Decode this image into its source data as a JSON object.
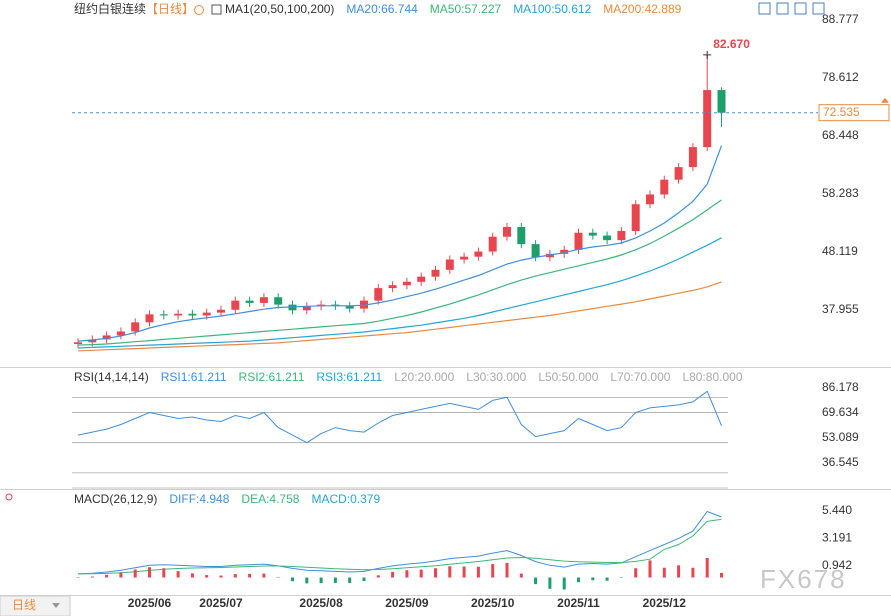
{
  "header": {
    "symbol": "纽约白银连续",
    "period": "【日线】"
  },
  "footer": {
    "period_button": "日线",
    "watermark": "FX678"
  },
  "chart_data": [
    {
      "type": "candlestick",
      "legend_title": "MA1(20,50,100,200)",
      "up_color": "#e8464f",
      "down_color": "#1e9e6a",
      "open": [
        32.0,
        32.3,
        32.8,
        33.5,
        34.2,
        35.8,
        37.2,
        37.0,
        37.3,
        37.0,
        37.5,
        38.0,
        39.6,
        39.2,
        40.2,
        38.9,
        37.9,
        38.6,
        38.9,
        38.7,
        38.2,
        39.6,
        41.8,
        42.3,
        42.9,
        43.8,
        45.0,
        46.8,
        47.3,
        48.2,
        50.8,
        52.5,
        49.5,
        47.2,
        47.8,
        48.5,
        51.5,
        51.0,
        50.2,
        51.8,
        56.5,
        58.2,
        60.8,
        63.0,
        66.5,
        76.5
      ],
      "high": [
        33.0,
        33.5,
        34.2,
        34.9,
        36.5,
        37.9,
        37.9,
        38.0,
        38.0,
        38.2,
        38.7,
        40.3,
        40.3,
        40.9,
        40.9,
        39.6,
        39.3,
        39.6,
        39.6,
        39.4,
        40.3,
        42.5,
        43.0,
        43.6,
        44.5,
        45.7,
        47.5,
        48.0,
        48.9,
        51.5,
        53.2,
        53.2,
        50.2,
        48.5,
        49.2,
        52.2,
        52.2,
        51.7,
        52.5,
        57.2,
        58.9,
        61.5,
        63.7,
        67.2,
        82.67,
        77.0
      ],
      "low": [
        31.3,
        31.6,
        32.1,
        32.8,
        33.5,
        35.1,
        36.3,
        36.3,
        36.3,
        36.3,
        36.8,
        37.3,
        38.5,
        38.5,
        38.2,
        37.2,
        37.2,
        37.9,
        38.0,
        37.5,
        37.5,
        38.9,
        41.1,
        41.6,
        42.2,
        43.1,
        44.3,
        46.1,
        46.6,
        47.5,
        50.1,
        48.8,
        46.5,
        46.5,
        47.1,
        47.8,
        50.3,
        49.5,
        49.5,
        51.1,
        55.8,
        57.5,
        60.1,
        62.3,
        65.8,
        70.0
      ],
      "close": [
        32.3,
        32.8,
        33.5,
        34.2,
        35.8,
        37.2,
        37.0,
        37.3,
        37.0,
        37.5,
        38.0,
        39.6,
        39.2,
        40.2,
        38.9,
        37.9,
        38.6,
        38.9,
        38.7,
        38.2,
        39.6,
        41.8,
        42.3,
        42.9,
        43.8,
        45.0,
        46.8,
        47.3,
        48.2,
        50.8,
        52.5,
        49.5,
        47.2,
        47.8,
        48.5,
        51.5,
        51.0,
        50.2,
        51.8,
        56.5,
        58.2,
        60.8,
        63.0,
        66.5,
        76.5,
        72.535
      ],
      "overlays": [
        {
          "name": "MA20:66.744",
          "color": "#3f8fe0",
          "values": [
            32.5,
            32.7,
            33.0,
            33.4,
            34.0,
            34.8,
            35.4,
            35.9,
            36.3,
            36.6,
            36.9,
            37.3,
            37.7,
            38.1,
            38.4,
            38.5,
            38.6,
            38.7,
            38.7,
            38.7,
            38.8,
            39.2,
            39.7,
            40.3,
            40.9,
            41.6,
            42.4,
            43.2,
            44.0,
            45.0,
            46.0,
            46.7,
            47.2,
            47.6,
            48.0,
            48.6,
            49.0,
            49.3,
            49.7,
            50.6,
            51.8,
            53.2,
            55.0,
            57.0,
            60.0,
            66.744
          ]
        },
        {
          "name": "MA50:57.227",
          "color": "#3cb878",
          "values": [
            31.8,
            31.9,
            32.0,
            32.2,
            32.4,
            32.6,
            32.8,
            33.0,
            33.2,
            33.4,
            33.6,
            33.8,
            34.0,
            34.2,
            34.4,
            34.6,
            34.8,
            35.0,
            35.2,
            35.4,
            35.6,
            36.0,
            36.5,
            37.0,
            37.6,
            38.3,
            39.0,
            39.8,
            40.6,
            41.5,
            42.4,
            43.2,
            43.9,
            44.5,
            45.1,
            45.7,
            46.3,
            46.9,
            47.6,
            48.5,
            49.6,
            50.9,
            52.3,
            53.8,
            55.5,
            57.227
          ]
        },
        {
          "name": "MA100:50.612",
          "color": "#26a5d6",
          "values": [
            31.3,
            31.4,
            31.5,
            31.6,
            31.7,
            31.8,
            31.9,
            32.0,
            32.1,
            32.2,
            32.3,
            32.4,
            32.5,
            32.7,
            32.9,
            33.1,
            33.3,
            33.5,
            33.7,
            33.9,
            34.1,
            34.4,
            34.7,
            35.0,
            35.3,
            35.7,
            36.1,
            36.5,
            37.0,
            37.6,
            38.2,
            38.8,
            39.4,
            40.0,
            40.6,
            41.2,
            41.8,
            42.4,
            43.1,
            43.9,
            44.8,
            45.8,
            46.9,
            48.1,
            49.3,
            50.612
          ]
        },
        {
          "name": "MA200:42.889",
          "color": "#e98b3f",
          "values": [
            30.8,
            30.9,
            31.0,
            31.1,
            31.2,
            31.3,
            31.4,
            31.5,
            31.6,
            31.7,
            31.8,
            31.9,
            32.0,
            32.1,
            32.2,
            32.4,
            32.6,
            32.8,
            33.0,
            33.2,
            33.4,
            33.6,
            33.8,
            34.0,
            34.3,
            34.6,
            34.9,
            35.2,
            35.5,
            35.8,
            36.1,
            36.4,
            36.7,
            37.0,
            37.4,
            37.8,
            38.2,
            38.6,
            39.0,
            39.4,
            39.9,
            40.4,
            40.9,
            41.4,
            42.0,
            42.889
          ]
        }
      ],
      "last_price": 72.535,
      "high_label": {
        "value": 82.67,
        "label": "82.670"
      },
      "ylim": [
        28.32,
        90.53
      ],
      "yticks": [
        37.955,
        48.119,
        58.283,
        68.448,
        78.612,
        88.777
      ]
    },
    {
      "type": "line",
      "legend_title": "RSI(14,14,14)",
      "series": [
        {
          "name": "RSI1:61.211",
          "color": "#3f8fe0",
          "values": [
            55,
            57,
            59,
            62,
            66,
            70,
            68,
            66,
            67,
            65,
            64,
            68,
            66,
            70,
            60,
            55,
            50,
            56,
            60,
            58,
            57,
            63,
            68,
            70,
            72,
            74,
            76,
            74,
            72,
            78,
            80,
            62,
            54,
            56,
            58,
            66,
            62,
            58,
            60,
            70,
            73,
            74,
            75,
            77,
            84,
            61.211
          ]
        }
      ],
      "legend_extra": [
        {
          "text": "RSI2:61.211",
          "color": "#3cb878"
        },
        {
          "text": "RSI3:61.211",
          "color": "#26a5d6"
        },
        {
          "text": "L20:20.000",
          "color": "#aaaaaa"
        },
        {
          "text": "L30:30.000",
          "color": "#aaaaaa"
        },
        {
          "text": "L50:50.000",
          "color": "#aaaaaa"
        },
        {
          "text": "L70:70.000",
          "color": "#aaaaaa"
        },
        {
          "text": "L80:80.000",
          "color": "#aaaaaa"
        }
      ],
      "levels": [
        20,
        30,
        50,
        70,
        80
      ],
      "ylim": [
        20.0,
        98.1
      ],
      "yticks": [
        36.545,
        53.089,
        69.634,
        86.178
      ]
    },
    {
      "type": "combo",
      "legend_title": "MACD(26,12,9)",
      "categories": [
        null,
        null,
        null,
        null,
        null,
        "2025/06",
        null,
        null,
        null,
        null,
        "2025/07",
        null,
        null,
        null,
        null,
        null,
        null,
        "2025/08",
        null,
        null,
        null,
        null,
        null,
        "2025/09",
        null,
        null,
        null,
        null,
        null,
        "2025/10",
        null,
        null,
        null,
        null,
        null,
        "2025/11",
        null,
        null,
        null,
        null,
        null,
        "2025/12",
        null,
        null,
        null,
        null
      ],
      "up_color": "#e8464f",
      "down_color": "#1e9e6a",
      "series": [
        {
          "name": "DIFF:4.948",
          "color": "#3f8fe0",
          "style": "line",
          "values": [
            0.3,
            0.35,
            0.45,
            0.6,
            0.8,
            1.0,
            1.05,
            1.0,
            0.95,
            0.9,
            0.9,
            1.0,
            1.05,
            1.1,
            0.95,
            0.75,
            0.6,
            0.55,
            0.5,
            0.45,
            0.5,
            0.75,
            0.95,
            1.1,
            1.2,
            1.35,
            1.55,
            1.65,
            1.75,
            2.0,
            2.2,
            1.8,
            1.3,
            1.0,
            0.85,
            1.1,
            1.15,
            1.1,
            1.2,
            1.7,
            2.2,
            2.7,
            3.2,
            3.8,
            5.4,
            4.948
          ]
        },
        {
          "name": "DEA:4.758",
          "color": "#3cb878",
          "style": "line",
          "values": [
            0.3,
            0.31,
            0.34,
            0.39,
            0.47,
            0.58,
            0.67,
            0.74,
            0.78,
            0.8,
            0.82,
            0.86,
            0.9,
            0.94,
            0.94,
            0.9,
            0.84,
            0.78,
            0.72,
            0.67,
            0.64,
            0.66,
            0.72,
            0.8,
            0.88,
            0.97,
            1.09,
            1.2,
            1.31,
            1.45,
            1.6,
            1.64,
            1.57,
            1.46,
            1.34,
            1.29,
            1.26,
            1.23,
            1.22,
            1.32,
            1.5,
            2.3,
            2.7,
            3.4,
            4.6,
            4.758
          ]
        },
        {
          "name": "MACD:0.379",
          "color": "#26a5d6",
          "style": "bar",
          "values": [
            0,
            0.08,
            0.22,
            0.42,
            0.66,
            0.84,
            0.76,
            0.52,
            0.34,
            0.2,
            0.16,
            0.28,
            0.3,
            0.32,
            0.02,
            -0.3,
            -0.48,
            -0.46,
            -0.44,
            -0.44,
            -0.28,
            0.18,
            0.46,
            0.6,
            0.64,
            0.76,
            0.92,
            0.9,
            0.88,
            1.1,
            1.2,
            0.32,
            -0.54,
            -0.92,
            -0.98,
            -0.38,
            -0.22,
            -0.26,
            -0.04,
            0.76,
            1.4,
            0.8,
            1.0,
            0.8,
            1.6,
            0.379
          ]
        }
      ],
      "ylim": [
        -1.43,
        7.16
      ],
      "yticks": [
        0.942,
        3.191,
        {
          "value": 5.44,
          "label": "5.440"
        }
      ]
    }
  ]
}
